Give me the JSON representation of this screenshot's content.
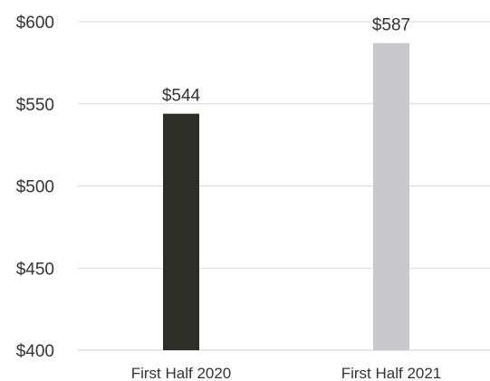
{
  "chart_data": {
    "type": "bar",
    "categories": [
      "First Half 2020",
      "First Half 2021"
    ],
    "values": [
      544,
      587
    ],
    "data_labels": [
      "$544",
      "$587"
    ],
    "ylim": [
      400,
      600
    ],
    "yticks": [
      400,
      450,
      500,
      550,
      600
    ],
    "ytick_labels": [
      "$400",
      "$450",
      "$500",
      "$550",
      "$600"
    ],
    "title": "",
    "xlabel": "",
    "ylabel": "",
    "grid": true,
    "legend": "none",
    "colors": [
      "#2e2e28",
      "#c8c8ca"
    ]
  }
}
